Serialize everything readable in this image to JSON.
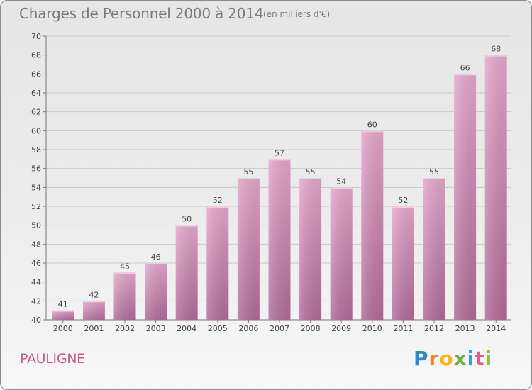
{
  "header": {
    "title": "Charges de Personnel 2000 à 2014",
    "subtitle": "(en milliers d'€)"
  },
  "footer": {
    "place_name": "PAULIGNE",
    "logo_text": "Proxiti"
  },
  "colors": {
    "bar_light": "#e3a3c8",
    "bar_dark": "#b06b98",
    "grid": "#c8c8c8",
    "place": "#c45a8f"
  },
  "chart_data": {
    "type": "bar",
    "categories": [
      "2000",
      "2001",
      "2002",
      "2003",
      "2004",
      "2005",
      "2006",
      "2007",
      "2008",
      "2009",
      "2010",
      "2011",
      "2012",
      "2013",
      "2014"
    ],
    "values": [
      41,
      42,
      45,
      46,
      50,
      52,
      55,
      57,
      55,
      54,
      60,
      52,
      55,
      66,
      68
    ],
    "title": "Charges de Personnel 2000 à 2014",
    "subtitle": "(en milliers d'€)",
    "ylim": [
      40,
      70
    ],
    "yticks": [
      40,
      42,
      44,
      46,
      48,
      50,
      52,
      54,
      56,
      58,
      60,
      62,
      64,
      66,
      68,
      70
    ],
    "grid": true
  }
}
